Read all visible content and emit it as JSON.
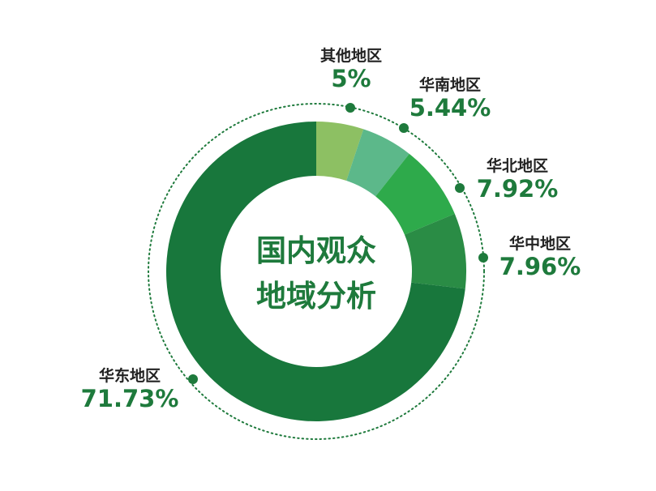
{
  "chart_data": {
    "type": "pie",
    "title": "国内观众地域分析",
    "title_lines": [
      "国内观众",
      "地域分析"
    ],
    "slices": [
      {
        "label": "其他地区",
        "value": 5,
        "display": "5%",
        "color": "#8dc063"
      },
      {
        "label": "华南地区",
        "value": 5.44,
        "display": "5.44%",
        "color": "#5cb88a"
      },
      {
        "label": "华北地区",
        "value": 7.92,
        "display": "7.92%",
        "color": "#2eaa4b"
      },
      {
        "label": "华中地区",
        "value": 7.96,
        "display": "7.96%",
        "color": "#2a8c45"
      },
      {
        "label": "华东地区",
        "value": 71.73,
        "display": "71.73%",
        "color": "#18773c"
      }
    ],
    "start": "top",
    "direction": "clockwise",
    "donut": true,
    "legend": "none"
  }
}
